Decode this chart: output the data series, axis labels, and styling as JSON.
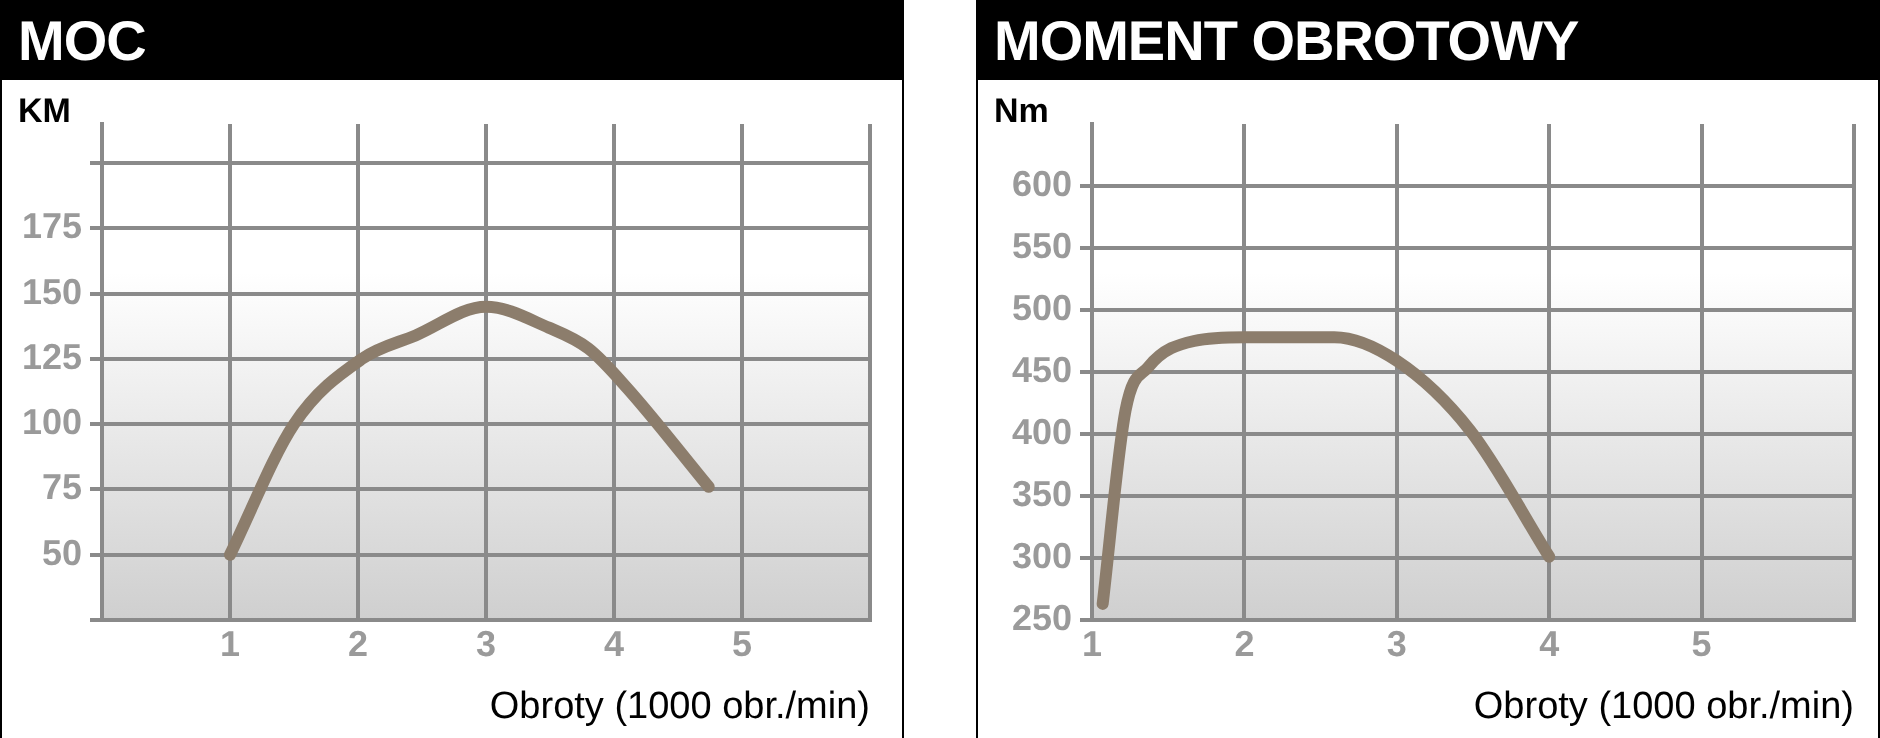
{
  "chart_data": [
    {
      "type": "line",
      "title": "MOC",
      "ylabel": "KM",
      "xlabel": "Obroty (1000 obr./min)",
      "grid": true,
      "x": [
        1.0,
        1.5,
        2.03,
        2.45,
        3.0,
        3.49,
        3.8,
        4.1,
        4.74
      ],
      "series": [
        {
          "color": "#8c7d6c",
          "values": [
            50,
            100,
            125,
            134,
            145,
            137,
            129,
            114,
            76
          ]
        }
      ],
      "xlim": [
        0,
        6
      ],
      "xticks": [
        1,
        2,
        3,
        4,
        5,
        {
          "value": 6,
          "label": null
        }
      ],
      "ylim": [
        25,
        215
      ],
      "yticks": [
        {
          "value": 25,
          "label": null
        },
        50,
        75,
        100,
        125,
        150,
        175,
        {
          "value": 200,
          "label": null
        }
      ]
    },
    {
      "type": "line",
      "title": "MOMENT OBROTOWY",
      "ylabel": "Nm",
      "xlabel": "Obroty (1000 obr./min)",
      "grid": true,
      "x": [
        1.07,
        1.22,
        1.37,
        1.67,
        2.0,
        2.59,
        3.0,
        3.48,
        4.0
      ],
      "series": [
        {
          "color": "#8c7d6c",
          "values": [
            263,
            419,
            454,
            475,
            478,
            478,
            459,
            403,
            301
          ]
        }
      ],
      "xlim": [
        1,
        6
      ],
      "xticks": [
        1,
        2,
        3,
        4,
        5,
        {
          "value": 6,
          "label": null
        }
      ],
      "ylim": [
        250,
        650
      ],
      "yticks": [
        250,
        300,
        350,
        400,
        450,
        500,
        550,
        600
      ]
    }
  ]
}
